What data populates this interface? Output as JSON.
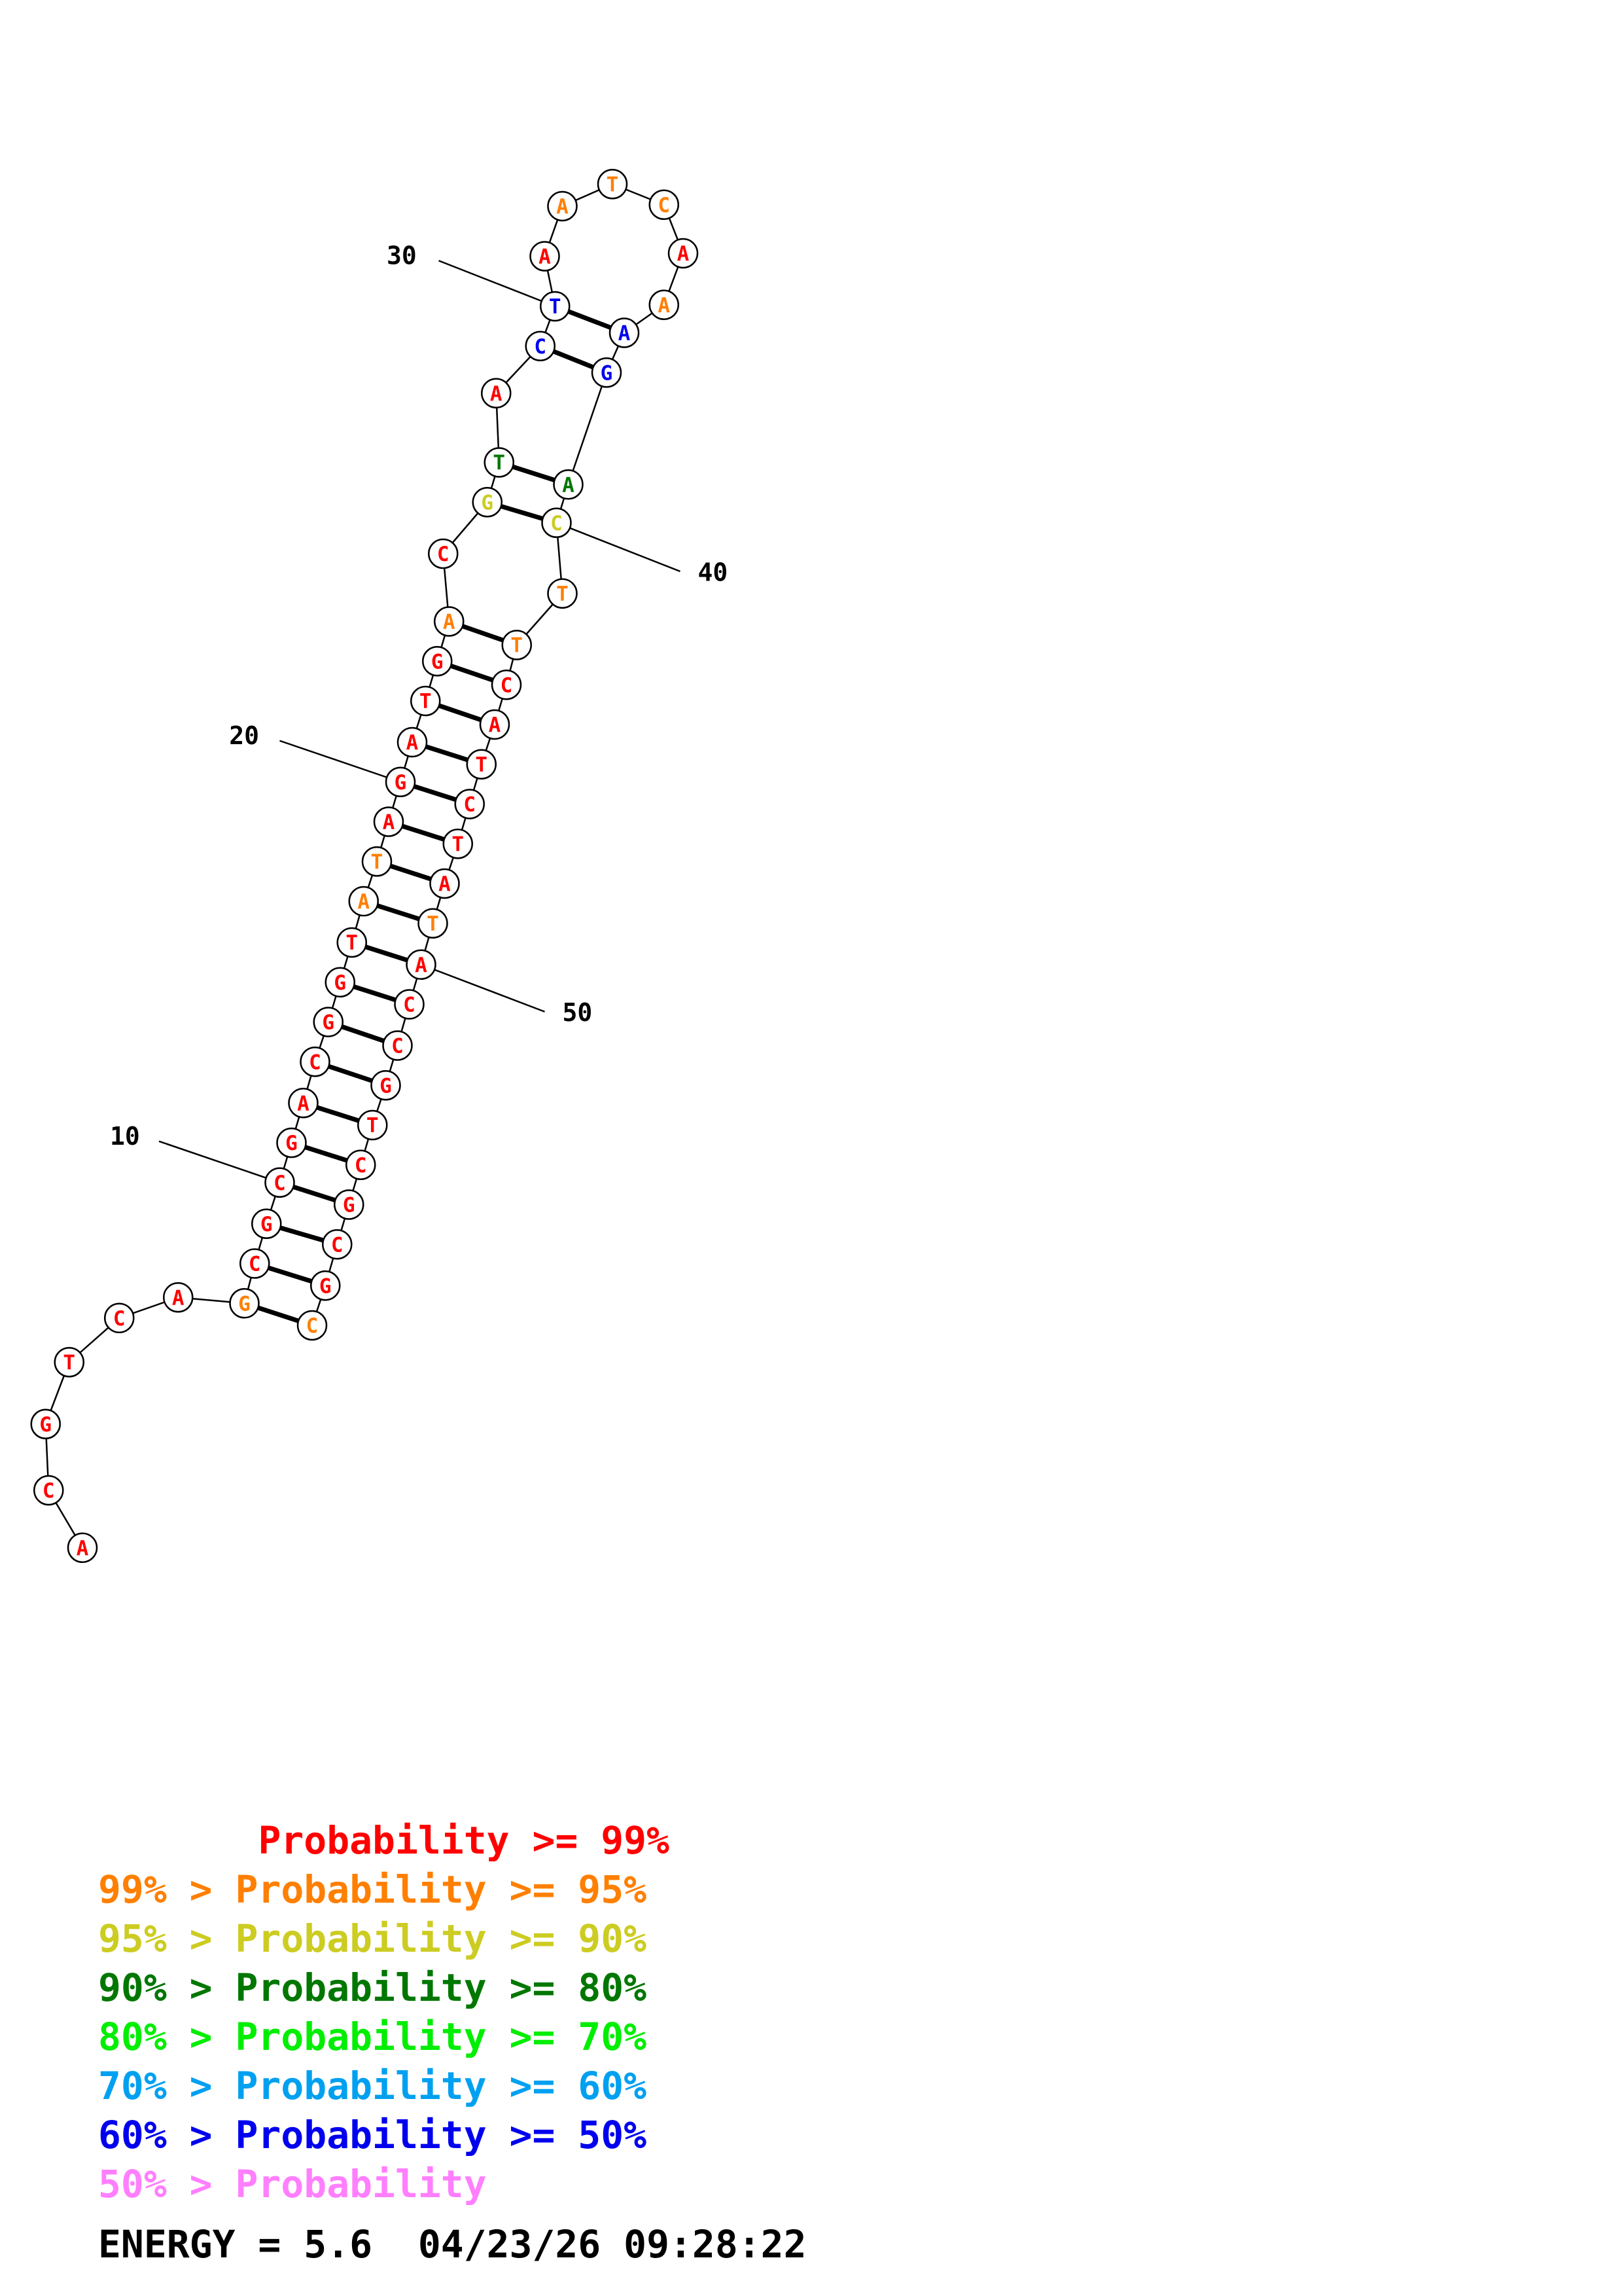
{
  "colors": {
    "p99": "#ff0000",
    "p95": "#ff7f00",
    "p90": "#cccc22",
    "p80": "#007700",
    "p70": "#00ee00",
    "p60": "#00a0f0",
    "p50": "#0000ee",
    "plow": "#ff7fff"
  },
  "structure": {
    "sequence": [
      "A",
      "C",
      "G",
      "T",
      "C",
      "A",
      "G",
      "C",
      "G",
      "C",
      "G",
      "A",
      "C",
      "G",
      "G",
      "T",
      "A",
      "T",
      "A",
      "G",
      "A",
      "T",
      "G",
      "A",
      "C",
      "G",
      "T",
      "A",
      "C",
      "T",
      "A",
      "A",
      "T",
      "C",
      "A",
      "A",
      "A",
      "G",
      "A",
      "C",
      "T",
      "T",
      "C",
      "A",
      "T",
      "C",
      "T",
      "A",
      "T",
      "A",
      "C",
      "C",
      "G",
      "T",
      "C",
      "G",
      "C",
      "G",
      "C"
    ],
    "probability_class": [
      "p99",
      "p99",
      "p99",
      "p99",
      "p99",
      "p99",
      "p95",
      "p99",
      "p99",
      "p99",
      "p99",
      "p99",
      "p99",
      "p99",
      "p99",
      "p99",
      "p95",
      "p95",
      "p99",
      "p99",
      "p99",
      "p99",
      "p99",
      "p95",
      "p99",
      "p90",
      "p80",
      "p99",
      "p50",
      "p50",
      "p99",
      "p95",
      "p95",
      "p95",
      "p99",
      "p95",
      "p50",
      "p50",
      "p80",
      "p90",
      "p95",
      "p95",
      "p99",
      "p99",
      "p99",
      "p99",
      "p99",
      "p99",
      "p95",
      "p99",
      "p99",
      "p99",
      "p99",
      "p99",
      "p99",
      "p99",
      "p99",
      "p99",
      "p95"
    ],
    "pairs": [
      [
        7,
        59
      ],
      [
        8,
        58
      ],
      [
        9,
        57
      ],
      [
        10,
        56
      ],
      [
        11,
        55
      ],
      [
        12,
        54
      ],
      [
        13,
        53
      ],
      [
        14,
        52
      ],
      [
        15,
        51
      ],
      [
        16,
        50
      ],
      [
        17,
        49
      ],
      [
        18,
        48
      ],
      [
        19,
        47
      ],
      [
        20,
        46
      ],
      [
        21,
        45
      ],
      [
        22,
        44
      ],
      [
        23,
        43
      ],
      [
        24,
        42
      ],
      [
        26,
        40
      ],
      [
        27,
        39
      ],
      [
        29,
        38
      ],
      [
        30,
        37
      ]
    ],
    "position_labels": [
      {
        "index": 10,
        "text": "10"
      },
      {
        "index": 20,
        "text": "20"
      },
      {
        "index": 30,
        "text": "30"
      },
      {
        "index": 40,
        "text": "40"
      },
      {
        "index": 50,
        "text": "50"
      }
    ]
  },
  "legend": [
    {
      "prefix": "       ",
      "label": "Probability >= 99%",
      "color_key": "p99"
    },
    {
      "prefix": "99% > ",
      "label": "Probability >= 95%",
      "color_key": "p95"
    },
    {
      "prefix": "95% > ",
      "label": "Probability >= 90%",
      "color_key": "p90"
    },
    {
      "prefix": "90% > ",
      "label": "Probability >= 80%",
      "color_key": "p80"
    },
    {
      "prefix": "80% > ",
      "label": "Probability >= 70%",
      "color_key": "p70"
    },
    {
      "prefix": "70% > ",
      "label": "Probability >= 60%",
      "color_key": "p60"
    },
    {
      "prefix": "60% > ",
      "label": "Probability >= 50%",
      "color_key": "p50"
    },
    {
      "prefix": "50% > ",
      "label": "Probability",
      "color_key": "plow"
    }
  ],
  "footer": {
    "energy": "ENERGY = 5.6",
    "timestamp": "04/23/26 09:28:22"
  }
}
